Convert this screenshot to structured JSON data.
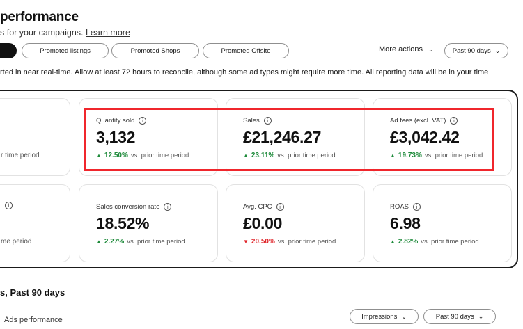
{
  "header": {
    "title": "performance",
    "subtitle": "s for your campaigns.",
    "learn_more": "Learn more"
  },
  "tabs": [
    "Promoted listings",
    "Promoted Shops",
    "Promoted Offsite"
  ],
  "more_actions": "More actions",
  "date_filter": "Past 90 days",
  "notice": "rted in near real-time. Allow at least 72 hours to reconcile, although some ad types might require more time. All reporting data will be in your time",
  "partial_cards": {
    "top_trend": "r time period",
    "bottom_trend": "me period"
  },
  "metrics": [
    {
      "label": "Quantity sold",
      "value": "3,132",
      "change": "12.50%",
      "direction": "up",
      "comparison": "vs. prior time period"
    },
    {
      "label": "Sales",
      "value": "£21,246.27",
      "change": "23.11%",
      "direction": "up",
      "comparison": "vs. prior time period"
    },
    {
      "label": "Ad fees (excl. VAT)",
      "value": "£3,042.42",
      "change": "19.73%",
      "direction": "up",
      "comparison": "vs. prior time period"
    },
    {
      "label": "Sales conversion rate",
      "value": "18.52%",
      "change": "2.27%",
      "direction": "up",
      "comparison": "vs. prior time period"
    },
    {
      "label": "Avg. CPC",
      "value": "£0.00",
      "change": "20.50%",
      "direction": "down",
      "comparison": "vs. prior time period"
    },
    {
      "label": "ROAS",
      "value": "6.98",
      "change": "2.82%",
      "direction": "up",
      "comparison": "vs. prior time period"
    }
  ],
  "section": {
    "title": "s, Past 90 days",
    "ads_label": "Ads performance",
    "metric_select": "Impressions",
    "date_select": "Past 90 days"
  },
  "colors": {
    "positive": "#1d8a3a",
    "negative": "#e0262b",
    "highlight": "#f0262c"
  }
}
